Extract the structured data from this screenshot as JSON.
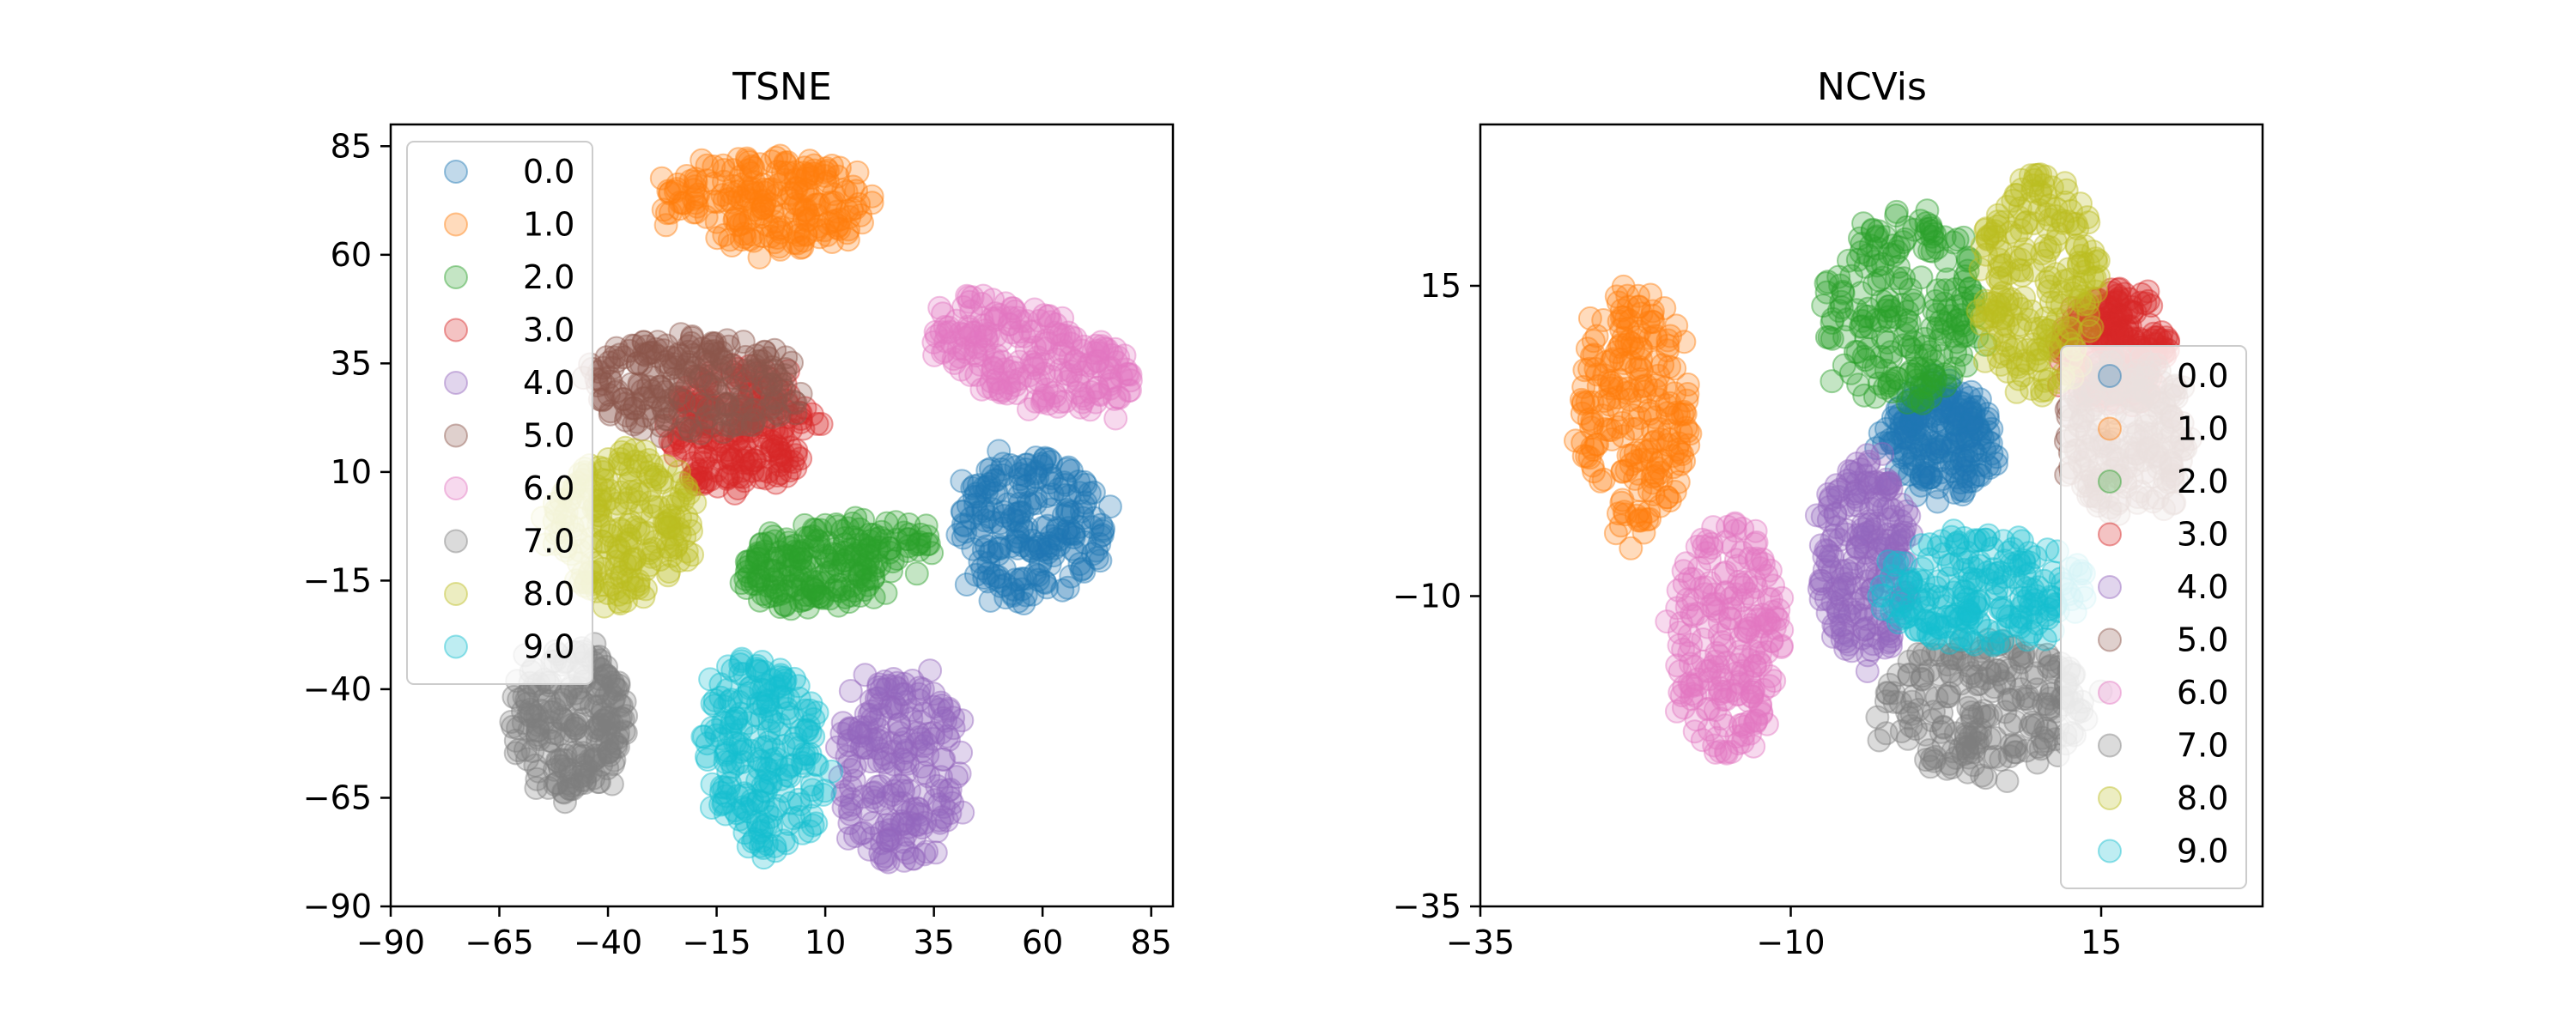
{
  "figure": {
    "tsne_title": "TSNE",
    "ncvis_title": "NCVis"
  },
  "chart_data": [
    {
      "type": "scatter",
      "title": "TSNE",
      "xlabel": "",
      "ylabel": "",
      "xlim": [
        -90,
        90
      ],
      "ylim": [
        -90,
        90
      ],
      "xticks": [
        -90,
        -65,
        -40,
        -15,
        10,
        35,
        60,
        85
      ],
      "yticks": [
        -90,
        -65,
        -40,
        -15,
        10,
        35,
        60,
        85
      ],
      "xtick_labels": [
        "−90",
        "−65",
        "−40",
        "−15",
        "10",
        "35",
        "60",
        "85"
      ],
      "ytick_labels": [
        "−90",
        "−65",
        "−40",
        "−15",
        "10",
        "35",
        "60",
        "85"
      ],
      "grid": false,
      "legend": "upper-left",
      "legend_entries": [
        "0.0",
        "1.0",
        "2.0",
        "3.0",
        "4.0",
        "5.0",
        "6.0",
        "7.0",
        "8.0",
        "9.0"
      ],
      "series": [
        {
          "name": "0.0",
          "color": "#1f77b4",
          "cluster": {
            "cx": 57,
            "cy": -3,
            "rx": 17,
            "ry": 17,
            "angle": 0
          }
        },
        {
          "name": "1.0",
          "color": "#ff7f0e",
          "cluster": {
            "cx": -3,
            "cy": 72,
            "rx": 24,
            "ry": 11,
            "angle": 0
          }
        },
        {
          "name": "2.0",
          "color": "#2ca02c",
          "cluster": {
            "cx": 12,
            "cy": -11,
            "rx": 23,
            "ry": 10,
            "angle": 10
          }
        },
        {
          "name": "3.0",
          "color": "#d62728",
          "cluster": {
            "cx": -10,
            "cy": 20,
            "rx": 17,
            "ry": 15,
            "angle": 0
          }
        },
        {
          "name": "4.0",
          "color": "#9467bd",
          "cluster": {
            "cx": 27,
            "cy": -58,
            "rx": 15,
            "ry": 22,
            "angle": 0
          }
        },
        {
          "name": "5.0",
          "color": "#8c564b",
          "cluster": {
            "cx": -20,
            "cy": 30,
            "rx": 25,
            "ry": 12,
            "angle": 0
          }
        },
        {
          "name": "6.0",
          "color": "#e377c2",
          "cluster": {
            "cx": 57,
            "cy": 37,
            "rx": 25,
            "ry": 11,
            "angle": -20
          }
        },
        {
          "name": "7.0",
          "color": "#7f7f7f",
          "cluster": {
            "cx": -49,
            "cy": -47,
            "rx": 14,
            "ry": 17,
            "angle": 0
          }
        },
        {
          "name": "8.0",
          "color": "#bcbd22",
          "cluster": {
            "cx": -36,
            "cy": -2,
            "rx": 17,
            "ry": 18,
            "angle": 0
          }
        },
        {
          "name": "9.0",
          "color": "#17becf",
          "cluster": {
            "cx": -4,
            "cy": -55,
            "rx": 14,
            "ry": 23,
            "angle": 10
          }
        }
      ]
    },
    {
      "type": "scatter",
      "title": "NCVis",
      "xlabel": "",
      "ylabel": "",
      "xlim": [
        -35,
        28
      ],
      "ylim": [
        -35,
        28
      ],
      "xticks": [
        -35,
        -10,
        15
      ],
      "yticks": [
        -35,
        -10,
        15
      ],
      "xtick_labels": [
        "−35",
        "−10",
        "15"
      ],
      "ytick_labels": [
        "−35",
        "−10",
        "15"
      ],
      "grid": false,
      "legend": "lower-right",
      "legend_entries": [
        "0.0",
        "1.0",
        "2.0",
        "3.0",
        "4.0",
        "5.0",
        "6.0",
        "7.0",
        "8.0",
        "9.0"
      ],
      "series": [
        {
          "name": "0.0",
          "color": "#1f77b4",
          "cluster": {
            "cx": 2,
            "cy": 2.5,
            "rx": 4.5,
            "ry": 5,
            "angle": 0
          }
        },
        {
          "name": "1.0",
          "color": "#ff7f0e",
          "cluster": {
            "cx": -22.5,
            "cy": 5,
            "rx": 4.5,
            "ry": 10,
            "angle": 0
          }
        },
        {
          "name": "2.0",
          "color": "#2ca02c",
          "cluster": {
            "cx": -1,
            "cy": 13,
            "rx": 6.5,
            "ry": 8,
            "angle": 0
          }
        },
        {
          "name": "3.0",
          "color": "#d62728",
          "cluster": {
            "cx": 16,
            "cy": 10,
            "rx": 4.5,
            "ry": 5,
            "angle": 0
          }
        },
        {
          "name": "4.0",
          "color": "#9467bd",
          "cluster": {
            "cx": -4,
            "cy": -7,
            "rx": 4,
            "ry": 8,
            "angle": 0
          }
        },
        {
          "name": "5.0",
          "color": "#8c564b",
          "cluster": {
            "cx": 17,
            "cy": 3,
            "rx": 5,
            "ry": 6.5,
            "angle": 0
          }
        },
        {
          "name": "6.0",
          "color": "#e377c2",
          "cluster": {
            "cx": -15,
            "cy": -13.5,
            "rx": 4.5,
            "ry": 9.5,
            "angle": 0
          }
        },
        {
          "name": "7.0",
          "color": "#7f7f7f",
          "cluster": {
            "cx": 5.5,
            "cy": -19,
            "rx": 8.5,
            "ry": 5.5,
            "angle": 0
          }
        },
        {
          "name": "8.0",
          "color": "#bcbd22",
          "cluster": {
            "cx": 10,
            "cy": 15,
            "rx": 5,
            "ry": 9,
            "angle": 0
          }
        },
        {
          "name": "9.0",
          "color": "#17becf",
          "cluster": {
            "cx": 5.5,
            "cy": -9.5,
            "rx": 8.5,
            "ry": 4.5,
            "angle": 0
          }
        }
      ]
    }
  ]
}
